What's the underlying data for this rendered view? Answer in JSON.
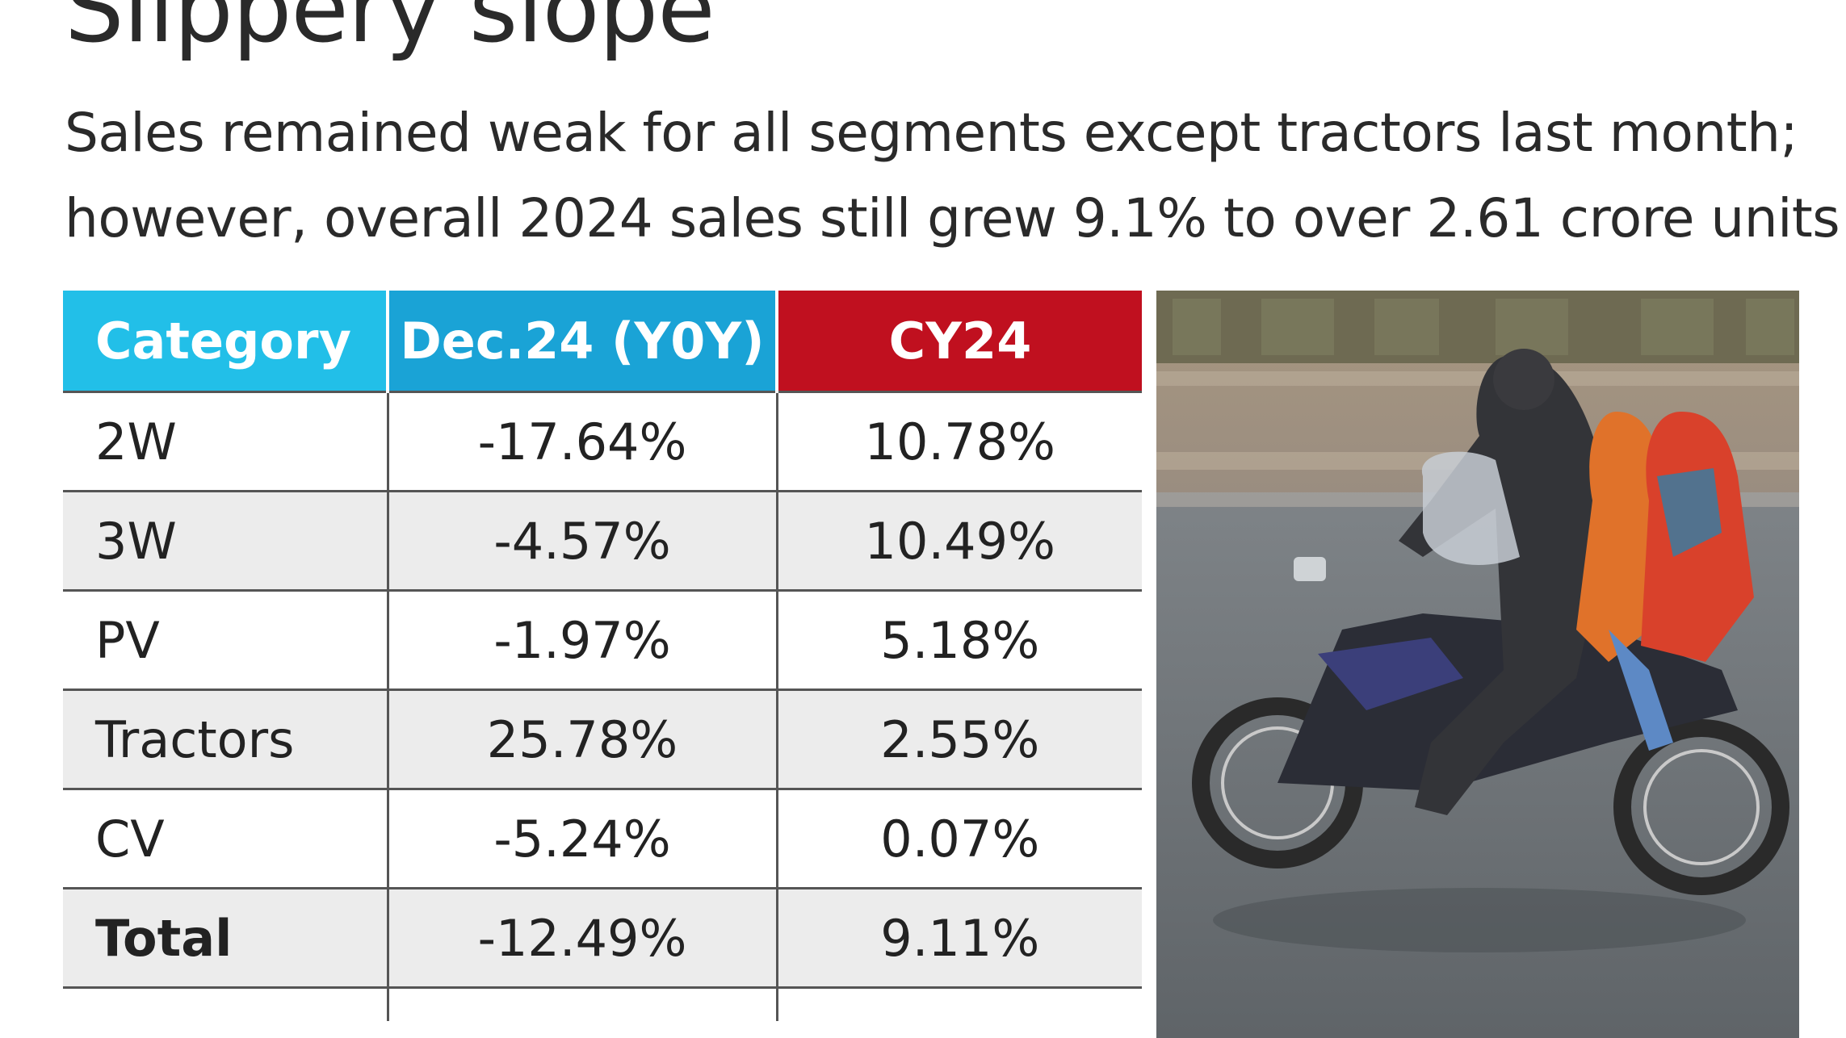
{
  "title": "Slippery slope",
  "subtitle_lines": [
    "Sales remained weak for all segments except tractors last month;",
    "however, overall 2024 sales still grew 9.1% to over 2.61 crore units"
  ],
  "colors": {
    "category_header": "#22bfe8",
    "dec_header": "#1aa3d6",
    "cy_header": "#c0101f"
  },
  "chart_data": {
    "type": "table",
    "columns": [
      "Category",
      "Dec.24 (Y0Y)",
      "CY24"
    ],
    "rows": [
      [
        "2W",
        "-17.64%",
        "10.78%"
      ],
      [
        "3W",
        "-4.57%",
        "10.49%"
      ],
      [
        "PV",
        "-1.97%",
        "5.18%"
      ],
      [
        "Tractors",
        "25.78%",
        "2.55%"
      ],
      [
        "CV",
        "-5.24%",
        "0.07%"
      ],
      [
        "Total",
        "-12.49%",
        "9.11%"
      ]
    ]
  }
}
